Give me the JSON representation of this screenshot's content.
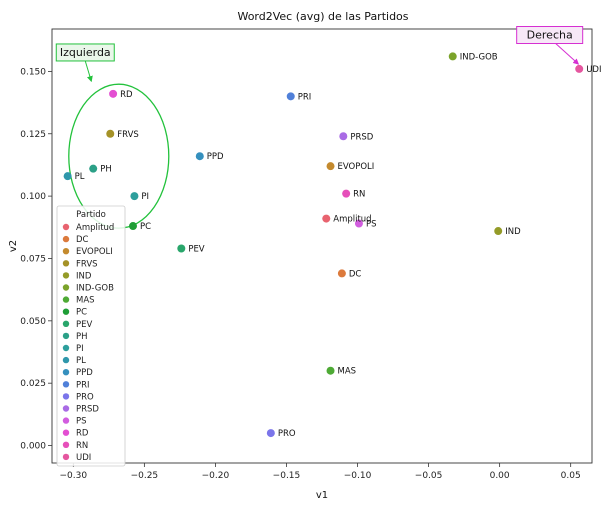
{
  "chart_data": {
    "type": "scatter",
    "title": "Word2Vec (avg) de las Partidos",
    "xlabel": "v1",
    "ylabel": "v2",
    "xlim": [
      -0.315,
      0.065
    ],
    "ylim": [
      -0.007,
      0.167
    ],
    "xticks": [
      -0.3,
      -0.25,
      -0.2,
      -0.15,
      -0.1,
      -0.05,
      0.0,
      0.05
    ],
    "xtick_labels": [
      "−0.30",
      "−0.25",
      "−0.20",
      "−0.15",
      "−0.10",
      "−0.05",
      "0.00",
      "0.05"
    ],
    "yticks": [
      0.0,
      0.025,
      0.05,
      0.075,
      0.1,
      0.125,
      0.15
    ],
    "ytick_labels": [
      "0.000",
      "0.025",
      "0.050",
      "0.075",
      "0.100",
      "0.125",
      "0.150"
    ],
    "grid": false,
    "legend_title": "Partido",
    "legend_position": "lower-left",
    "points": [
      {
        "name": "Amplitud",
        "x": -0.122,
        "y": 0.091,
        "color": "#e8636f"
      },
      {
        "name": "DC",
        "x": -0.111,
        "y": 0.069,
        "color": "#dc7a3c"
      },
      {
        "name": "EVOPOLI",
        "x": -0.119,
        "y": 0.112,
        "color": "#c48a2e"
      },
      {
        "name": "FRVS",
        "x": -0.274,
        "y": 0.125,
        "color": "#a59227"
      },
      {
        "name": "IND",
        "x": -0.001,
        "y": 0.086,
        "color": "#949b28"
      },
      {
        "name": "IND-GOB",
        "x": -0.033,
        "y": 0.156,
        "color": "#7ba32a"
      },
      {
        "name": "MAS",
        "x": -0.119,
        "y": 0.03,
        "color": "#4eaa35"
      },
      {
        "name": "PC",
        "x": -0.258,
        "y": 0.088,
        "color": "#1f9e36"
      },
      {
        "name": "PEV",
        "x": -0.224,
        "y": 0.079,
        "color": "#29a66b"
      },
      {
        "name": "PH",
        "x": -0.286,
        "y": 0.111,
        "color": "#2ba087"
      },
      {
        "name": "PI",
        "x": -0.257,
        "y": 0.1,
        "color": "#2d9f9c"
      },
      {
        "name": "PL",
        "x": -0.304,
        "y": 0.108,
        "color": "#2f97ab"
      },
      {
        "name": "PPD",
        "x": -0.211,
        "y": 0.116,
        "color": "#3590be"
      },
      {
        "name": "PRI",
        "x": -0.147,
        "y": 0.14,
        "color": "#5080d9"
      },
      {
        "name": "PRO",
        "x": -0.161,
        "y": 0.005,
        "color": "#7b75ea"
      },
      {
        "name": "PRSD",
        "x": -0.11,
        "y": 0.124,
        "color": "#a96be5"
      },
      {
        "name": "PS",
        "x": -0.099,
        "y": 0.089,
        "color": "#d25ddf"
      },
      {
        "name": "RD",
        "x": -0.272,
        "y": 0.141,
        "color": "#e34fd2"
      },
      {
        "name": "RN",
        "x": -0.108,
        "y": 0.101,
        "color": "#e64fba"
      },
      {
        "name": "UDI",
        "x": 0.056,
        "y": 0.151,
        "color": "#e5569f"
      }
    ],
    "annotations": [
      {
        "text": "Izquierda",
        "box_color": "#23c23c",
        "fill": "#eaf7ea"
      },
      {
        "text": "Derecha",
        "box_color": "#d62fd2",
        "fill": "#f7e8f7"
      }
    ]
  }
}
